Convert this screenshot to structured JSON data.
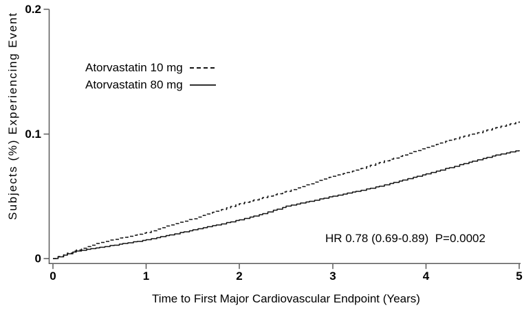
{
  "chart_data": {
    "type": "line",
    "subtype": "kaplan-meier-step",
    "title": "",
    "xlabel": "Time to First Major Cardiovascular Endpoint (Years)",
    "ylabel": "Subjects (%) Experiencing Event",
    "xlim": [
      0,
      5
    ],
    "ylim": [
      0,
      0.2
    ],
    "x_ticks": [
      0,
      1,
      2,
      3,
      4,
      5
    ],
    "x_tick_labels": [
      "0",
      "1",
      "2",
      "3",
      "4",
      "5"
    ],
    "y_ticks": [
      0,
      0.1,
      0.2
    ],
    "y_tick_labels": [
      "0",
      "0.1",
      "0.2"
    ],
    "grid": false,
    "legend_position": "upper-left-inside",
    "x": [
      0,
      0.25,
      0.5,
      0.75,
      1.0,
      1.25,
      1.5,
      1.75,
      2.0,
      2.25,
      2.5,
      2.75,
      3.0,
      3.25,
      3.5,
      3.75,
      4.0,
      4.25,
      4.5,
      4.75,
      5.0
    ],
    "series": [
      {
        "name": "Atorvastatin 10 mg",
        "line_style": "dashed",
        "color": "#111111",
        "values": [
          0,
          0.007,
          0.013,
          0.017,
          0.021,
          0.027,
          0.032,
          0.038,
          0.044,
          0.049,
          0.054,
          0.06,
          0.066,
          0.071,
          0.077,
          0.083,
          0.089,
          0.095,
          0.1,
          0.105,
          0.11
        ]
      },
      {
        "name": "Atorvastatin 80 mg",
        "line_style": "solid",
        "color": "#111111",
        "values": [
          0,
          0.006,
          0.009,
          0.012,
          0.015,
          0.019,
          0.023,
          0.027,
          0.031,
          0.036,
          0.042,
          0.046,
          0.05,
          0.054,
          0.058,
          0.063,
          0.068,
          0.073,
          0.078,
          0.083,
          0.087
        ]
      }
    ],
    "annotation": "HR 0.78 (0.69-0.89)  P=0.0002",
    "axis_color": "#5a5a5a",
    "text_color": "#000000",
    "background": "#ffffff"
  }
}
